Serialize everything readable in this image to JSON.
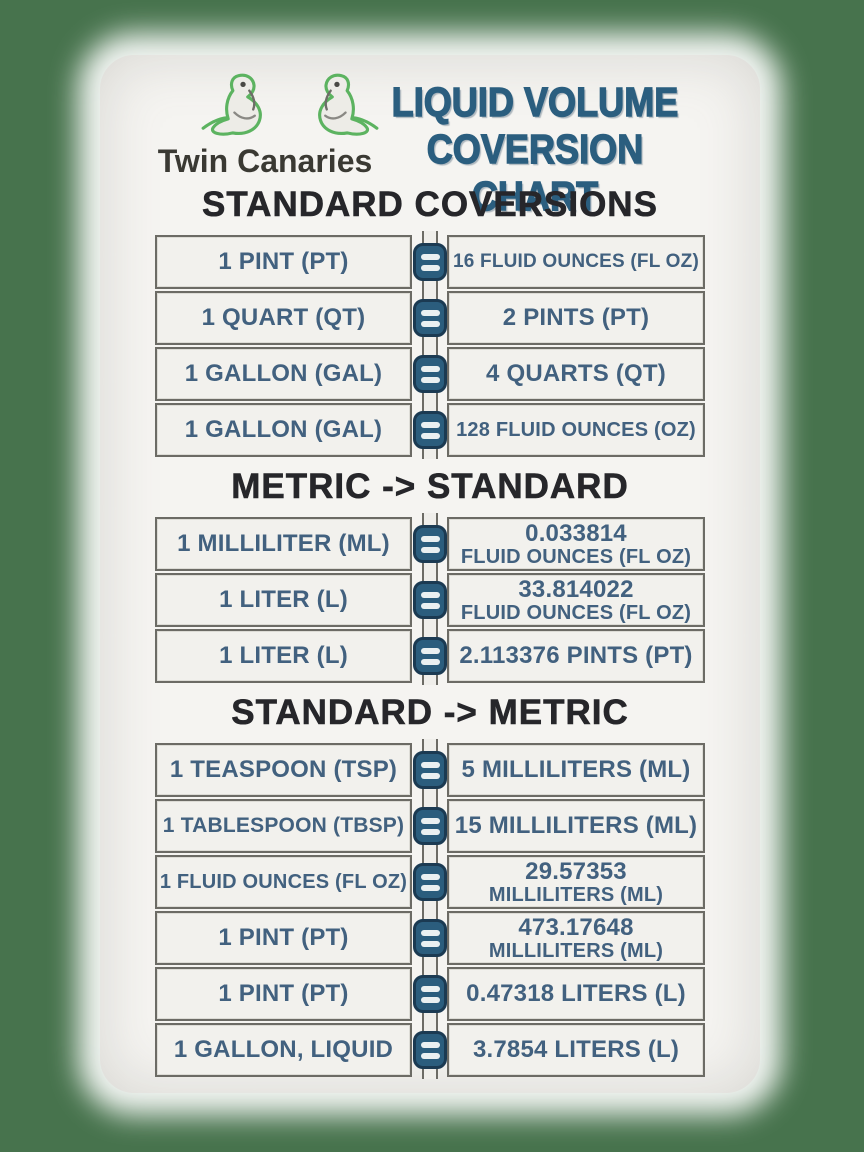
{
  "colors": {
    "background": "#47734d",
    "card": "#f5f4f1",
    "box": "#f2f1ed",
    "border": "#6c6b65",
    "rowtext": "#42617f",
    "heading": "#26262a",
    "title": "#2b5e7f",
    "eqfill": "#2b5d7d",
    "eqborder": "#1b3a52",
    "birdgreen": "#5cb360",
    "brand": "#3a3933"
  },
  "header": {
    "logo_icon": "twin-birds-logo",
    "brand": "Twin Canaries",
    "title_line1": "LIQUID VOLUME",
    "title_line2": "COVERSION CHART"
  },
  "equals_icon": "equals-icon",
  "sections": [
    {
      "heading": "STANDARD COVERSIONS",
      "rows": [
        {
          "left": "1 PINT (PT)",
          "right": "16 FLUID OUNCES (FL OZ)"
        },
        {
          "left": "1 QUART (QT)",
          "right": "2 PINTS (PT)"
        },
        {
          "left": "1 GALLON (GAL)",
          "right": "4 QUARTS (QT)"
        },
        {
          "left": "1 GALLON (GAL)",
          "right": "128 FLUID OUNCES (OZ)"
        }
      ]
    },
    {
      "heading": "METRIC -> STANDARD",
      "rows": [
        {
          "left": "1 MILLILITER (ML)",
          "right": "0.033814",
          "right2": "FLUID OUNCES (FL OZ)"
        },
        {
          "left": "1 LITER (L)",
          "right": "33.814022",
          "right2": "FLUID OUNCES (FL OZ)"
        },
        {
          "left": "1 LITER (L)",
          "right": "2.113376 PINTS (PT)"
        }
      ]
    },
    {
      "heading": "STANDARD -> METRIC",
      "rows": [
        {
          "left": "1 TEASPOON (TSP)",
          "right": "5 MILLILITERS (ML)"
        },
        {
          "left": "1 TABLESPOON (TBSP)",
          "right": "15 MILLILITERS (ML)"
        },
        {
          "left": "1 FLUID OUNCES (FL OZ)",
          "right": "29.57353",
          "right2": "MILLILITERS (ML)"
        },
        {
          "left": "1 PINT (PT)",
          "right": "473.17648",
          "right2": "MILLILITERS (ML)"
        },
        {
          "left": "1 PINT (PT)",
          "right": "0.47318 LITERS (L)"
        },
        {
          "left": "1 GALLON, LIQUID",
          "right": "3.7854 LITERS (L)"
        }
      ]
    }
  ]
}
